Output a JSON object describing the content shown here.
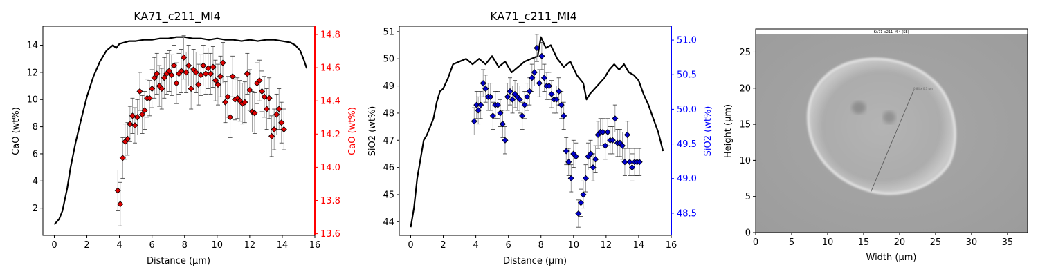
{
  "chart_data": [
    {
      "type": "scatter",
      "title": "KA71_c211_MI4",
      "xlabel": "Distance (µm)",
      "ylabel": "CaO (wt%)",
      "ylabel_right": "CaO (wt%)",
      "xlim": [
        -0.7,
        16.0
      ],
      "ylim": [
        0.0,
        15.4
      ],
      "ylim_right": [
        13.59,
        14.85
      ],
      "xticks": [
        "0",
        "2",
        "4",
        "6",
        "8",
        "10",
        "12",
        "14",
        "16"
      ],
      "yticks": [
        "2",
        "4",
        "6",
        "8",
        "10",
        "12",
        "14"
      ],
      "yticks_right": [
        "13.6",
        "13.8",
        "14.0",
        "14.2",
        "14.4",
        "14.6",
        "14.8"
      ],
      "right_axis_color": "#ff0000",
      "marker_color": "#dd0000",
      "line": {
        "color": "#000000",
        "x": [
          0,
          0.3,
          0.5,
          0.8,
          1.0,
          1.3,
          1.6,
          2.0,
          2.4,
          2.8,
          3.2,
          3.6,
          3.8,
          4.0,
          4.3,
          4.6,
          5.0,
          5.5,
          6.0,
          6.5,
          7.0,
          7.5,
          8.0,
          8.5,
          9.0,
          9.5,
          10.0,
          10.5,
          11.0,
          11.5,
          12.0,
          12.5,
          13.0,
          13.5,
          14.0,
          14.5,
          14.8,
          15.1,
          15.3,
          15.5
        ],
        "y": [
          0.8,
          1.2,
          1.8,
          3.5,
          5.0,
          6.8,
          8.3,
          10.2,
          11.7,
          12.8,
          13.6,
          14.0,
          13.8,
          14.1,
          14.2,
          14.3,
          14.3,
          14.4,
          14.4,
          14.5,
          14.5,
          14.6,
          14.6,
          14.5,
          14.5,
          14.4,
          14.5,
          14.4,
          14.4,
          14.3,
          14.4,
          14.3,
          14.4,
          14.4,
          14.3,
          14.2,
          14.0,
          13.6,
          13.0,
          12.3
        ]
      },
      "points": {
        "x": [
          3.9,
          4.05,
          4.2,
          4.35,
          4.5,
          4.65,
          4.8,
          4.95,
          5.1,
          5.25,
          5.4,
          5.55,
          5.7,
          5.85,
          6.0,
          6.15,
          6.3,
          6.45,
          6.6,
          6.75,
          6.9,
          7.05,
          7.2,
          7.35,
          7.5,
          7.65,
          7.8,
          7.95,
          8.1,
          8.25,
          8.4,
          8.55,
          8.7,
          8.85,
          9.0,
          9.15,
          9.3,
          9.45,
          9.6,
          9.75,
          9.9,
          10.05,
          10.2,
          10.35,
          10.5,
          10.65,
          10.8,
          10.95,
          11.1,
          11.25,
          11.4,
          11.55,
          11.7,
          11.85,
          12.0,
          12.15,
          12.3,
          12.45,
          12.6,
          12.75,
          12.9,
          13.05,
          13.2,
          13.35,
          13.5,
          13.65,
          13.8,
          13.95,
          14.1
        ],
        "y": [
          3.3,
          2.3,
          5.7,
          6.9,
          7.1,
          8.2,
          8.8,
          8.1,
          8.7,
          10.6,
          8.9,
          9.2,
          10.1,
          10.1,
          10.8,
          11.6,
          11.9,
          11.0,
          10.8,
          11.6,
          11.9,
          12.1,
          11.8,
          12.5,
          11.2,
          11.9,
          12.1,
          13.1,
          12.0,
          12.5,
          10.8,
          12.2,
          12.0,
          11.1,
          11.8,
          12.5,
          11.9,
          12.3,
          11.9,
          12.4,
          11.4,
          11.1,
          11.7,
          12.7,
          9.8,
          10.2,
          8.7,
          11.7,
          10.0,
          10.1,
          9.9,
          9.7,
          9.8,
          11.9,
          10.7,
          9.1,
          9.0,
          11.2,
          11.4,
          10.6,
          10.2,
          9.3,
          10.1,
          7.3,
          7.8,
          8.9,
          9.3,
          8.3,
          7.8
        ],
        "err": [
          1.5,
          1.6,
          1.5,
          1.3,
          1.2,
          1.3,
          1.3,
          1.3,
          1.3,
          1.4,
          1.4,
          1.4,
          1.4,
          1.3,
          1.4,
          1.5,
          1.5,
          1.5,
          1.5,
          1.5,
          1.5,
          1.5,
          1.5,
          1.5,
          1.5,
          1.5,
          1.6,
          1.6,
          1.5,
          1.5,
          1.5,
          1.5,
          1.5,
          1.5,
          1.5,
          1.5,
          1.5,
          1.5,
          1.5,
          1.5,
          1.5,
          1.5,
          1.5,
          1.5,
          1.5,
          1.5,
          1.5,
          1.5,
          1.5,
          1.5,
          1.5,
          1.5,
          1.5,
          1.5,
          1.5,
          1.5,
          1.5,
          1.5,
          1.5,
          1.5,
          1.5,
          1.5,
          1.5,
          1.5,
          1.5,
          1.5,
          1.5,
          1.5,
          1.5
        ]
      }
    },
    {
      "type": "scatter",
      "title": "KA71_c211_MI4",
      "xlabel": "Distance (µm)",
      "ylabel": "SiO2 (wt%)",
      "ylabel_right": "SiO2 (wt%)",
      "xlim": [
        -0.7,
        16.0
      ],
      "ylim": [
        43.5,
        51.2
      ],
      "ylim_right": [
        48.18,
        51.2
      ],
      "xticks": [
        "0",
        "2",
        "4",
        "6",
        "8",
        "10",
        "12",
        "14",
        "16"
      ],
      "yticks": [
        "44",
        "45",
        "46",
        "47",
        "48",
        "49",
        "50",
        "51"
      ],
      "yticks_right": [
        "48.5",
        "49.0",
        "49.5",
        "50.0",
        "50.5",
        "51.0"
      ],
      "right_axis_color": "#0000ff",
      "marker_color": "#0000cc",
      "line": {
        "color": "#000000",
        "x": [
          0,
          0.2,
          0.4,
          0.6,
          0.8,
          1.0,
          1.2,
          1.4,
          1.6,
          1.8,
          2.0,
          2.3,
          2.6,
          3.0,
          3.4,
          3.8,
          4.2,
          4.6,
          5.0,
          5.4,
          5.8,
          6.2,
          6.6,
          7.0,
          7.4,
          7.8,
          8.0,
          8.3,
          8.6,
          9.0,
          9.4,
          9.8,
          10.2,
          10.6,
          10.8,
          11.0,
          11.3,
          11.6,
          11.9,
          12.2,
          12.5,
          12.8,
          13.1,
          13.4,
          13.7,
          14.0,
          14.3,
          14.6,
          14.9,
          15.2,
          15.5
        ],
        "y": [
          43.8,
          44.5,
          45.6,
          46.3,
          47.0,
          47.2,
          47.5,
          47.8,
          48.4,
          48.8,
          48.9,
          49.3,
          49.8,
          49.9,
          50.0,
          49.8,
          50.0,
          49.8,
          50.1,
          49.7,
          49.9,
          49.5,
          49.7,
          49.9,
          50.0,
          50.1,
          50.8,
          50.4,
          50.5,
          50.0,
          49.7,
          49.9,
          49.4,
          49.1,
          48.5,
          48.7,
          48.9,
          49.1,
          49.3,
          49.6,
          49.8,
          49.6,
          49.8,
          49.5,
          49.4,
          49.2,
          48.7,
          48.3,
          47.8,
          47.3,
          46.6
        ]
      },
      "points": {
        "x": [
          3.9,
          4.05,
          4.15,
          4.3,
          4.45,
          4.6,
          4.75,
          4.9,
          5.05,
          5.2,
          5.35,
          5.5,
          5.65,
          5.8,
          5.95,
          6.1,
          6.25,
          6.4,
          6.55,
          6.7,
          6.85,
          7.0,
          7.15,
          7.3,
          7.45,
          7.6,
          7.75,
          7.9,
          8.05,
          8.2,
          8.35,
          8.5,
          8.65,
          8.8,
          8.95,
          9.1,
          9.25,
          9.4,
          9.55,
          9.7,
          9.85,
          10.0,
          10.15,
          10.3,
          10.45,
          10.6,
          10.75,
          10.9,
          11.05,
          11.2,
          11.35,
          11.5,
          11.65,
          11.8,
          11.95,
          12.1,
          12.25,
          12.4,
          12.55,
          12.7,
          12.85,
          13.0,
          13.15,
          13.3,
          13.45,
          13.6,
          13.75,
          13.9,
          14.05
        ],
        "y": [
          47.7,
          48.3,
          48.1,
          48.3,
          49.1,
          48.9,
          48.6,
          48.6,
          47.9,
          48.3,
          48.3,
          48.0,
          47.6,
          47.0,
          48.6,
          48.8,
          48.5,
          48.7,
          48.6,
          48.5,
          47.9,
          48.3,
          48.6,
          48.8,
          49.3,
          49.5,
          50.4,
          49.1,
          50.1,
          49.3,
          49.0,
          49.0,
          48.7,
          48.5,
          48.5,
          48.8,
          48.3,
          47.9,
          46.6,
          46.2,
          45.6,
          46.5,
          46.4,
          44.3,
          44.7,
          45.0,
          45.6,
          46.4,
          46.5,
          46.0,
          46.3,
          47.2,
          47.3,
          47.3,
          46.8,
          47.3,
          47.0,
          47.0,
          47.8,
          46.9,
          46.9,
          46.8,
          46.2,
          47.2,
          46.2,
          46.0,
          46.2,
          46.2,
          46.2
        ],
        "err": [
          0.5,
          0.5,
          0.5,
          0.5,
          0.5,
          0.5,
          0.5,
          0.5,
          0.5,
          0.5,
          0.5,
          0.5,
          0.5,
          0.5,
          0.5,
          0.5,
          0.5,
          0.5,
          0.5,
          0.5,
          0.5,
          0.5,
          0.5,
          0.5,
          0.5,
          0.5,
          0.5,
          0.5,
          0.5,
          0.5,
          0.5,
          0.5,
          0.5,
          0.5,
          0.5,
          0.5,
          0.5,
          0.5,
          0.5,
          0.5,
          0.5,
          0.5,
          0.5,
          0.5,
          0.5,
          0.5,
          0.5,
          0.5,
          0.5,
          0.5,
          0.5,
          0.5,
          0.5,
          0.5,
          0.5,
          0.5,
          0.5,
          0.5,
          0.5,
          0.5,
          0.5,
          0.5,
          0.5,
          0.5,
          0.5,
          0.5,
          0.5,
          0.5,
          0.5
        ]
      }
    },
    {
      "type": "image",
      "xlabel": "Width (µm)",
      "ylabel": "Height (µm)",
      "xlim": [
        0,
        37.8
      ],
      "ylim": [
        0,
        28.2
      ],
      "xticks": [
        "0",
        "5",
        "10",
        "15",
        "20",
        "25",
        "30",
        "35"
      ],
      "yticks": [
        "0",
        "5",
        "10",
        "15",
        "20",
        "25"
      ],
      "image_caption": "KA71_c211_MI4 (SE)",
      "image_scale_text": "0.84 x 0.3 µm",
      "profile_line": {
        "x": [
          16.0,
          22.0
        ],
        "y": [
          5.6,
          19.8
        ]
      }
    }
  ]
}
